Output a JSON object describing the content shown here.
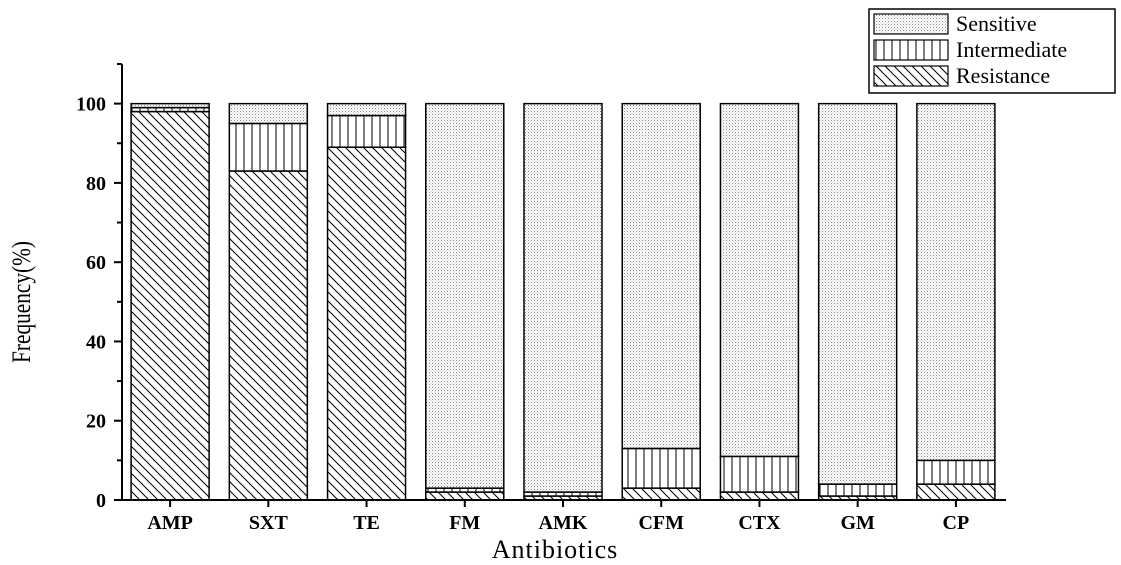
{
  "chart_data": {
    "type": "bar",
    "stacked": true,
    "title": "",
    "xlabel": "Antibiotics",
    "ylabel": "Frequency(%)",
    "categories": [
      "AMP",
      "SXT",
      "TE",
      "FM",
      "AMK",
      "CFM",
      "CTX",
      "GM",
      "CP"
    ],
    "ylim": [
      0,
      110
    ],
    "yticks": [
      0,
      20,
      40,
      60,
      80,
      100
    ],
    "series": [
      {
        "name": "Resistance",
        "pattern": "diagonal-hatch",
        "values": [
          98,
          83,
          89,
          2,
          1,
          3,
          2,
          1,
          4
        ]
      },
      {
        "name": "Intermediate",
        "pattern": "vertical-hatch",
        "values": [
          1,
          12,
          8,
          1,
          1,
          10,
          9,
          3,
          6
        ]
      },
      {
        "name": "Sensitive",
        "pattern": "dotted",
        "values": [
          1,
          5,
          3,
          97,
          98,
          87,
          89,
          96,
          90
        ]
      }
    ],
    "legend": {
      "position": "top-right",
      "entries": [
        "Sensitive",
        "Intermediate",
        "Resistance"
      ]
    },
    "grid": false,
    "colors": {
      "axis": "#000000",
      "bar_stroke": "#000000",
      "background": "#ffffff"
    }
  }
}
